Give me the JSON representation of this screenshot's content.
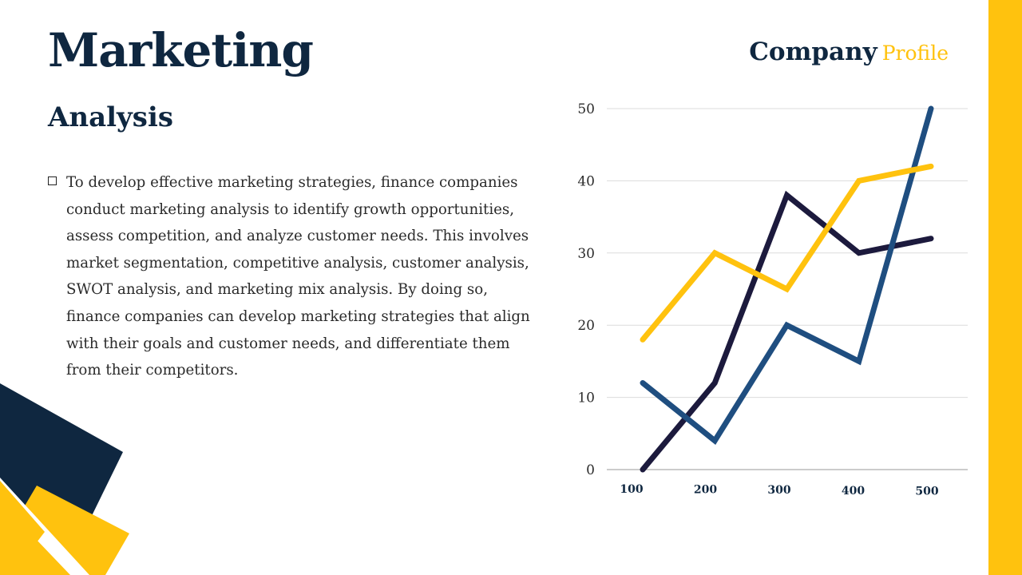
{
  "slide": {
    "title": "Marketing",
    "subtitle": "Analysis",
    "company_word1": "Company",
    "company_word2": "Profile",
    "body_text": "To develop effective marketing strategies, finance companies conduct marketing analysis to identify growth opportunities, assess competition, and analyze customer needs. This involves market segmentation, competitive analysis, customer analysis, SWOT analysis, and marketing mix analysis. By doing so, finance companies can develop marketing strategies that align with their goals and customer needs, and differentiate them from their competitors."
  },
  "colors": {
    "navy": "#0f2740",
    "accent_yellow": "#ffc20e",
    "blue": "#1f4e80",
    "dark_purple": "#1c1a3d"
  },
  "chart_data": {
    "type": "line",
    "x": [
      100,
      200,
      300,
      400,
      500
    ],
    "ylim": [
      0,
      50
    ],
    "yticks": [
      0,
      10,
      20,
      30,
      40,
      50
    ],
    "grid": true,
    "series": [
      {
        "values": [
          0,
          12,
          38,
          30,
          32
        ],
        "color": "#1c1a3d"
      },
      {
        "values": [
          12,
          4,
          20,
          15,
          50
        ],
        "color": "#1f4e80"
      },
      {
        "values": [
          18,
          30,
          25,
          40,
          42
        ],
        "color": "#ffc20e"
      }
    ]
  }
}
